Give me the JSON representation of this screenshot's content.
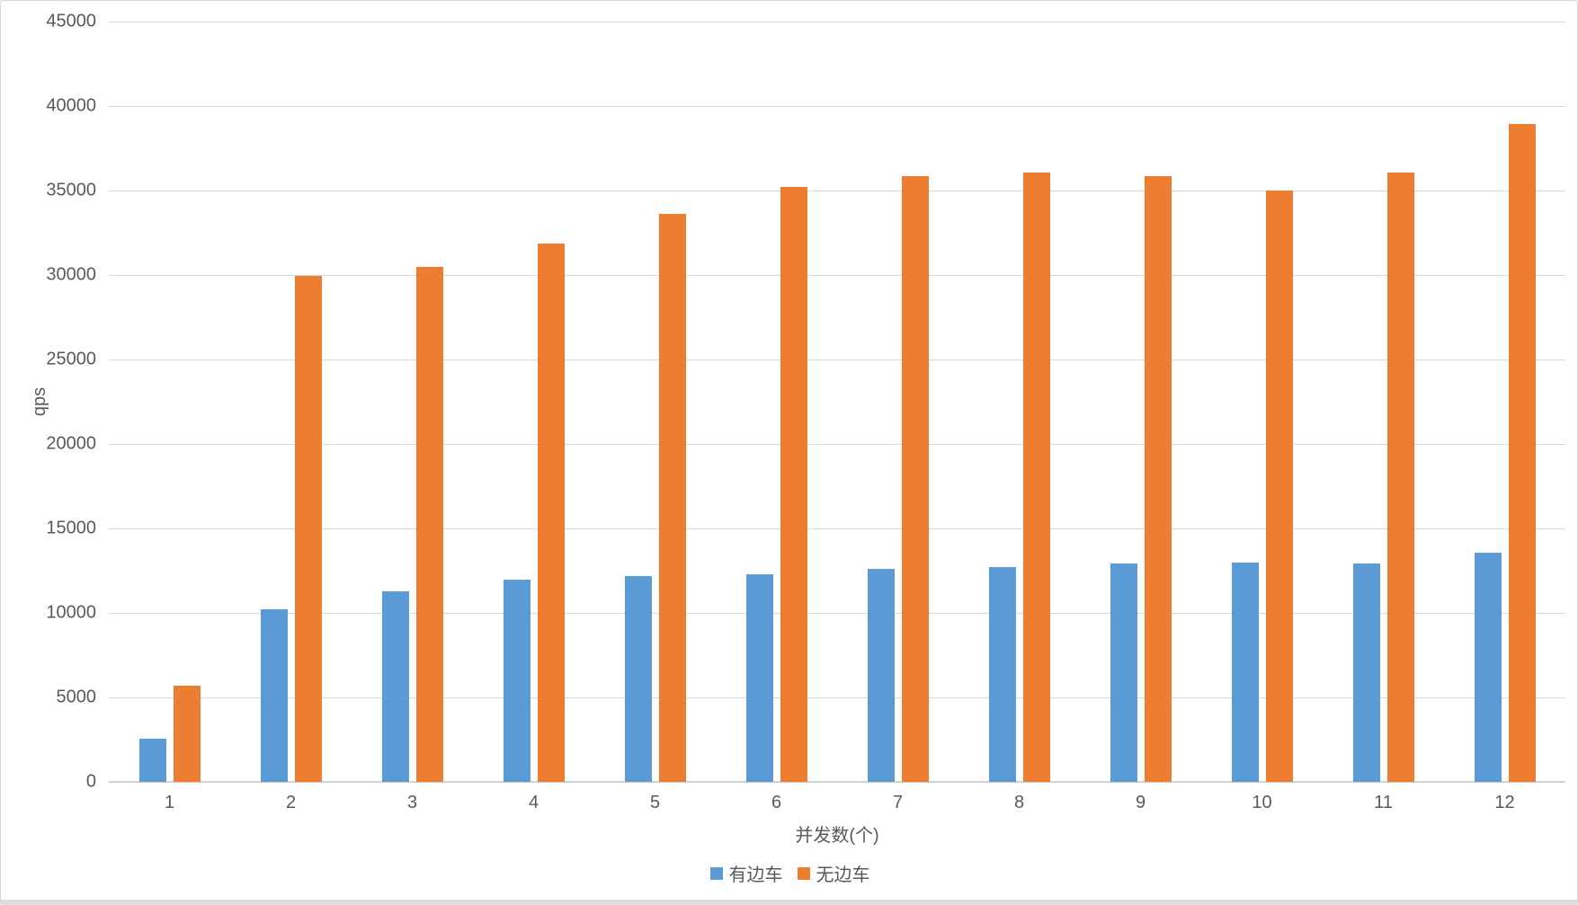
{
  "chart_data": {
    "type": "bar",
    "title": "",
    "categories": [
      "1",
      "2",
      "3",
      "4",
      "5",
      "6",
      "7",
      "8",
      "9",
      "10",
      "11",
      "12"
    ],
    "series": [
      {
        "name": "有边车",
        "color": "#5B9BD5",
        "values": [
          2550,
          10200,
          11300,
          11950,
          12200,
          12300,
          12600,
          12700,
          12900,
          13000,
          12950,
          13550
        ]
      },
      {
        "name": "无边车",
        "color": "#ED7D31",
        "values": [
          5700,
          29950,
          30500,
          31850,
          33600,
          35200,
          35850,
          36050,
          35850,
          35000,
          36050,
          38950
        ]
      }
    ],
    "xlabel": "并发数(个)",
    "ylabel": "qps",
    "ylim": [
      0,
      45000
    ],
    "ytick_step": 5000,
    "grid": true,
    "legend_position": "bottom"
  },
  "colors": {
    "text": "#595959",
    "gridline": "#D9D9D9",
    "zero_line": "#D2D2D2",
    "background": "#FFFFFF",
    "border": "#D6D6D6"
  }
}
